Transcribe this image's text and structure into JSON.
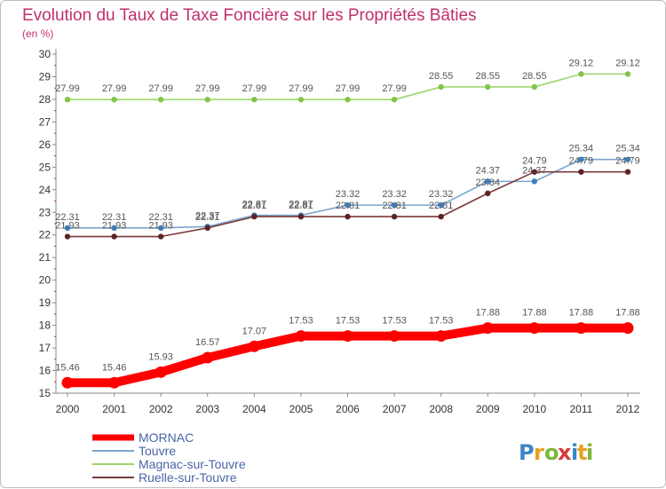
{
  "chart_data": {
    "type": "line",
    "title": "Evolution du Taux de Taxe Foncière sur les Propriétés Bâties",
    "subtitle": "(en %)",
    "xlabel": "",
    "ylabel": "",
    "categories": [
      "2000",
      "2001",
      "2002",
      "2003",
      "2004",
      "2005",
      "2006",
      "2007",
      "2008",
      "2009",
      "2010",
      "2011",
      "2012"
    ],
    "ylim": [
      15,
      30
    ],
    "yticks": [
      15,
      16,
      17,
      18,
      19,
      20,
      21,
      22,
      23,
      24,
      25,
      26,
      27,
      28,
      29,
      30
    ],
    "grid": false,
    "legend_position": "bottom-left",
    "series": [
      {
        "name": "MORNAC",
        "color": "#ff0000",
        "values": [
          15.46,
          15.46,
          15.93,
          16.57,
          17.07,
          17.53,
          17.53,
          17.53,
          17.53,
          17.88,
          17.88,
          17.88,
          17.88
        ],
        "labels": [
          "15.46",
          "15.46",
          "15.93",
          "16.57",
          "17.07",
          "17.53",
          "17.53",
          "17.53",
          "17.53",
          "17.88",
          "17.88",
          "17.88",
          "17.88"
        ]
      },
      {
        "name": "Touvre",
        "color": "#7ba6d1",
        "marker_color": "#3d7fc1",
        "values": [
          22.31,
          22.31,
          22.31,
          22.37,
          22.87,
          22.87,
          23.32,
          23.32,
          23.32,
          24.37,
          24.37,
          25.34,
          25.34
        ],
        "labels": [
          "22.31",
          "22.31",
          "22.31",
          "22.37",
          "22.87",
          "22.87",
          "23.32",
          "23.32",
          "23.32",
          "24.37",
          "24.37",
          "25.34",
          "25.34"
        ]
      },
      {
        "name": "Magnac-sur-Touvre",
        "color": "#9fd66e",
        "marker_color": "#84c44c",
        "values": [
          27.99,
          27.99,
          27.99,
          27.99,
          27.99,
          27.99,
          27.99,
          27.99,
          28.55,
          28.55,
          28.55,
          29.12,
          29.12
        ],
        "labels": [
          "27.99",
          "27.99",
          "27.99",
          "27.99",
          "27.99",
          "27.99",
          "27.99",
          "27.99",
          "28.55",
          "28.55",
          "28.55",
          "29.12",
          "29.12"
        ]
      },
      {
        "name": "Ruelle-sur-Touvre",
        "color": "#7a3a3a",
        "marker_color": "#5e2323",
        "values": [
          21.93,
          21.93,
          21.93,
          22.31,
          22.81,
          22.81,
          22.81,
          22.81,
          22.81,
          23.84,
          24.79,
          24.79,
          24.79
        ],
        "labels": [
          "21.93",
          "21.93",
          "21.93",
          "22.31",
          "22.81",
          "22.81",
          "22.81",
          "22.81",
          "22.81",
          "23.84",
          "24.79",
          "24.79",
          "24.79"
        ]
      }
    ]
  },
  "logo": {
    "letters": [
      "P",
      "r",
      "o",
      "x",
      "i",
      "t",
      "i"
    ],
    "colors": [
      "#3a86c8",
      "#e8a020",
      "#7cb83a",
      "#d83a3a",
      "#3a86c8",
      "#e8a020",
      "#7cb83a"
    ]
  }
}
